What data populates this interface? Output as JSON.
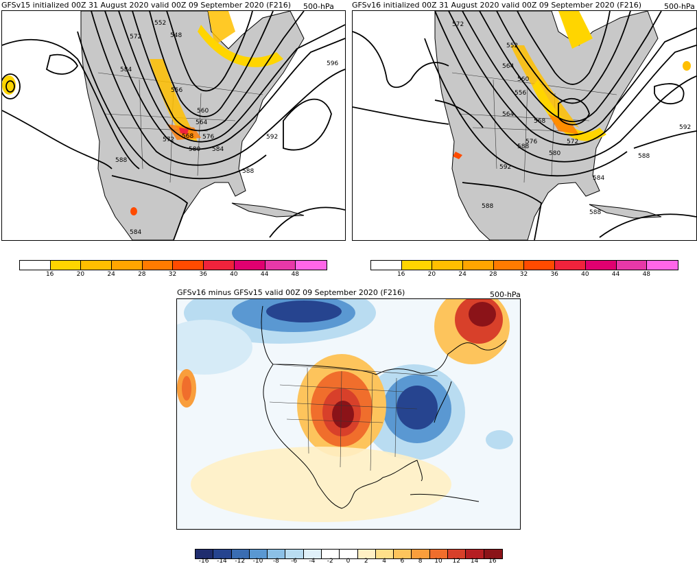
{
  "panels": {
    "left": {
      "title": "GFSv15 initialized 00Z 31 August 2020 valid 00Z 09 September 2020 (F216)",
      "level": "500-hPa",
      "contour_labels": [
        "552",
        "548",
        "572",
        "584",
        "556",
        "560",
        "564",
        "568",
        "572",
        "576",
        "580",
        "584",
        "592",
        "596",
        "588",
        "588",
        "584"
      ]
    },
    "right": {
      "title": "GFSv16 initialized 00Z 31 August 2020 valid 00Z 09 September 2020 (F216)",
      "level": "500-hPa",
      "contour_labels": [
        "572",
        "552",
        "564",
        "560",
        "556",
        "564",
        "568",
        "576",
        "572",
        "580",
        "588",
        "592",
        "588",
        "592",
        "584",
        "588",
        "588"
      ]
    },
    "diff": {
      "title": "GFSv16 minus GFSv15 valid 00Z 09 September 2020 (F216)",
      "level": "500-hPa"
    }
  },
  "colorbar_top": {
    "colors": [
      "#ffffff",
      "#ffd500",
      "#ffbf00",
      "#ffa500",
      "#ff7b00",
      "#ff4b00",
      "#f0233c",
      "#e00070",
      "#e838a8",
      "#ff66e8"
    ],
    "ticks": [
      "16",
      "20",
      "24",
      "28",
      "32",
      "36",
      "40",
      "44",
      "48"
    ]
  },
  "colorbar_bottom": {
    "colors": [
      "#1f2d6e",
      "#26448f",
      "#3a6db2",
      "#5a98d2",
      "#8cc0e6",
      "#b9dcf1",
      "#e0f0f9",
      "#ffffff",
      "#ffffff",
      "#fff0c4",
      "#ffe08a",
      "#fdc45c",
      "#f99e3c",
      "#f06e2c",
      "#d8402a",
      "#b51e22",
      "#8b1318"
    ],
    "ticks": [
      "-16",
      "-14",
      "-12",
      "-10",
      "-8",
      "-6",
      "-4",
      "-2",
      "0",
      "2",
      "4",
      "6",
      "8",
      "10",
      "12",
      "14",
      "16"
    ]
  }
}
